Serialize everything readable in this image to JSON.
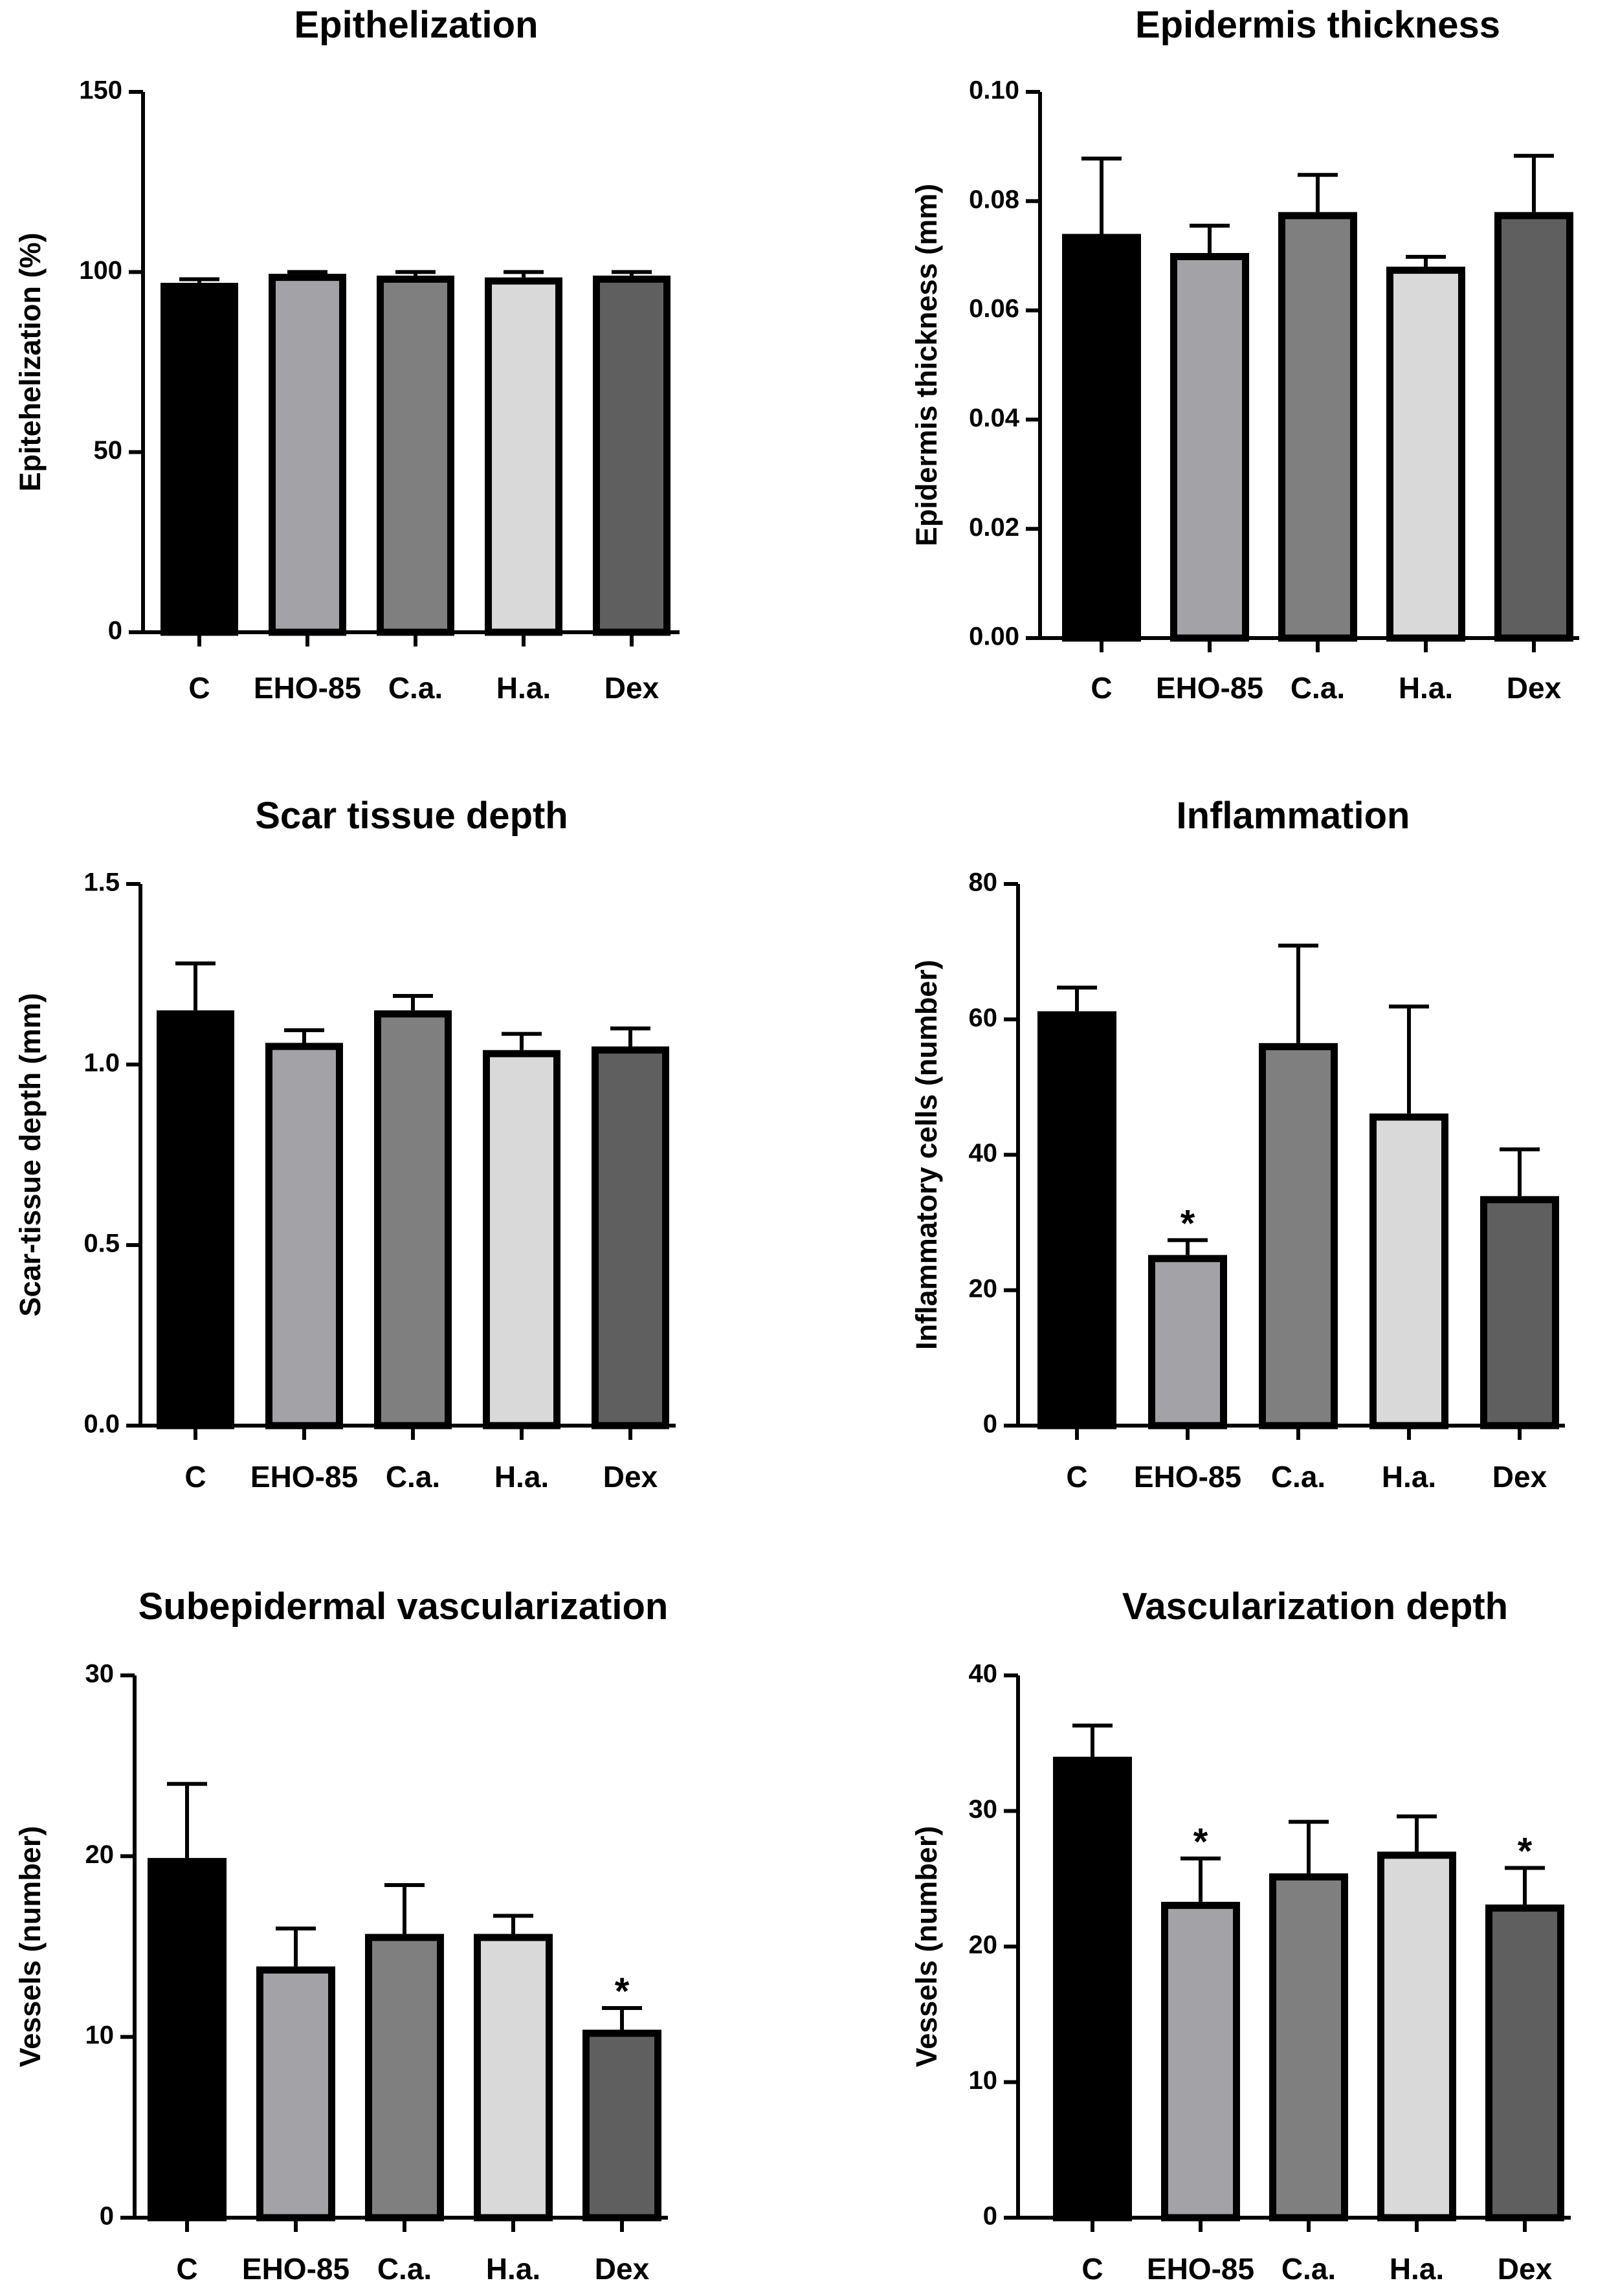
{
  "bar_colors": [
    "#000000",
    "#a3a3a7",
    "#7f7f7f",
    "#d9d9d9",
    "#5f5f5f"
  ],
  "chart_data": [
    {
      "type": "bar",
      "title": "Epithelization",
      "xlabel": "",
      "ylabel": "Epitehelization (%)",
      "categories": [
        "C",
        "EHO-85",
        "C.a.",
        "H.a.",
        "Dex"
      ],
      "values": [
        97,
        99.5,
        99,
        98.5,
        99
      ],
      "error_upper": [
        98,
        100,
        100,
        100,
        100
      ],
      "ylim": [
        0,
        150
      ],
      "yticks": [
        0,
        50,
        100,
        150
      ],
      "ytick_labels": [
        "0",
        "50",
        "100",
        "150"
      ],
      "annotations": []
    },
    {
      "type": "bar",
      "title": "Epidermis thickness",
      "xlabel": "",
      "ylabel": "Epidermis thickness (mm)",
      "categories": [
        "C",
        "EHO-85",
        "C.a.",
        "H.a.",
        "Dex"
      ],
      "values": [
        0.074,
        0.0705,
        0.078,
        0.068,
        0.078
      ],
      "error_upper": [
        0.0878,
        0.0755,
        0.0848,
        0.0698,
        0.0883
      ],
      "ylim": [
        0,
        0.1
      ],
      "yticks": [
        0,
        0.02,
        0.04,
        0.06,
        0.08,
        0.1
      ],
      "ytick_labels": [
        "0.00",
        "0.02",
        "0.04",
        "0.06",
        "0.08",
        "0.10"
      ],
      "annotations": []
    },
    {
      "type": "bar",
      "title": "Scar tissue depth",
      "xlabel": "",
      "ylabel": "Scar-tissue depth (mm)",
      "categories": [
        "C",
        "EHO-85",
        "C.a.",
        "H.a.",
        "Dex"
      ],
      "values": [
        1.15,
        1.06,
        1.15,
        1.04,
        1.05
      ],
      "error_upper": [
        1.28,
        1.095,
        1.19,
        1.085,
        1.1
      ],
      "ylim": [
        0,
        1.5
      ],
      "yticks": [
        0,
        0.5,
        1.0,
        1.5
      ],
      "ytick_labels": [
        "0.0",
        "0.5",
        "1.0",
        "1.5"
      ],
      "annotations": []
    },
    {
      "type": "bar",
      "title": "Inflammation",
      "xlabel": "",
      "ylabel": "Inflammatory cells (number)",
      "categories": [
        "C",
        "EHO-85",
        "C.a.",
        "H.a.",
        "Dex"
      ],
      "values": [
        61.2,
        25.2,
        56.5,
        46.1,
        33.9
      ],
      "error_upper": [
        64.7,
        27.4,
        70.9,
        61.9,
        40.8
      ],
      "ylim": [
        0,
        80
      ],
      "yticks": [
        0,
        20,
        40,
        60,
        80
      ],
      "ytick_labels": [
        "0",
        "20",
        "40",
        "60",
        "80"
      ],
      "annotations": [
        {
          "category": "EHO-85",
          "text": "*"
        }
      ]
    },
    {
      "type": "bar",
      "title": "Subepidermal vascularization",
      "xlabel": "",
      "ylabel": "Vessels (number)",
      "categories": [
        "C",
        "EHO-85",
        "C.a.",
        "H.a.",
        "Dex"
      ],
      "values": [
        19.9,
        13.9,
        15.7,
        15.7,
        10.4
      ],
      "error_upper": [
        24.0,
        16.0,
        18.4,
        16.7,
        11.6
      ],
      "ylim": [
        0,
        30
      ],
      "yticks": [
        0,
        10,
        20,
        30
      ],
      "ytick_labels": [
        "0",
        "10",
        "20",
        "30"
      ],
      "annotations": [
        {
          "category": "Dex",
          "text": "*"
        }
      ]
    },
    {
      "type": "bar",
      "title": "Vascularization depth",
      "xlabel": "",
      "ylabel": "Vessels (number)",
      "categories": [
        "C",
        "EHO-85",
        "C.a.",
        "H.a.",
        "Dex"
      ],
      "values": [
        34.0,
        23.3,
        25.4,
        27.0,
        23.1
      ],
      "error_upper": [
        36.3,
        26.5,
        29.2,
        29.6,
        25.8
      ],
      "ylim": [
        0,
        40
      ],
      "yticks": [
        0,
        10,
        20,
        30,
        40
      ],
      "ytick_labels": [
        "0",
        "10",
        "20",
        "30",
        "40"
      ],
      "annotations": [
        {
          "category": "EHO-85",
          "text": "*"
        },
        {
          "category": "Dex",
          "text": "*"
        }
      ]
    }
  ]
}
